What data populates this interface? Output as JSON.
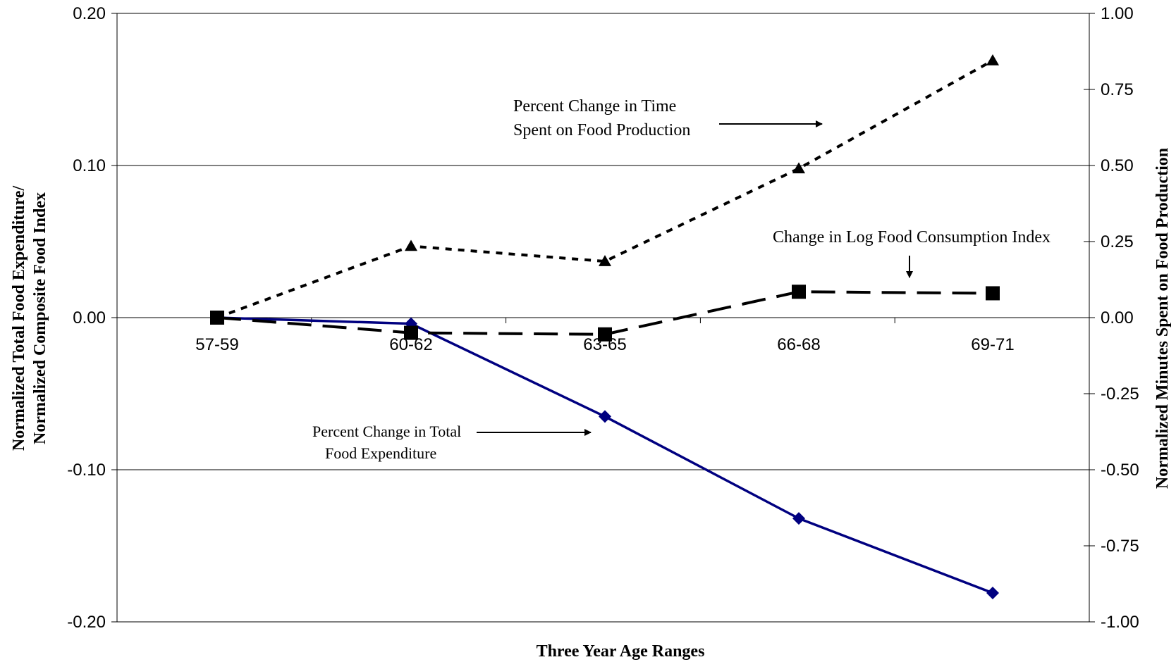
{
  "chart_data": {
    "type": "line",
    "categories": [
      "57-59",
      "60-62",
      "63-65",
      "66-68",
      "69-71"
    ],
    "xlabel": "Three Year Age Ranges",
    "ylabel_left": [
      "Normalized Total Food Expenditure/",
      "Normalized Composite Food Index"
    ],
    "ylabel_right": "Normalized Minutes Spent on Food Production",
    "ylim_left": [
      -0.2,
      0.2
    ],
    "ylim_right": [
      -1.0,
      1.0
    ],
    "left_ticks": [
      "0.20",
      "0.10",
      "0.00",
      "-0.10",
      "-0.20"
    ],
    "right_ticks": [
      "1.00",
      "0.75",
      "0.50",
      "0.25",
      "0.00",
      "-0.25",
      "-0.50",
      "-0.75",
      "-1.00"
    ],
    "grid": "horizontal at left-axis ticks",
    "series": [
      {
        "name": "Percent Change in Total Food Expenditure",
        "axis": "left",
        "values": [
          0.0,
          -0.004,
          -0.065,
          -0.132,
          -0.181
        ],
        "color": "#000080",
        "style": "solid",
        "marker": "diamond"
      },
      {
        "name": "Change in Log Food Consumption Index",
        "axis": "left",
        "values": [
          0.0,
          -0.01,
          -0.011,
          0.017,
          0.016
        ],
        "color": "#000000",
        "style": "long-dash",
        "marker": "square"
      },
      {
        "name": "Percent Change in Time Spent on Food Production",
        "axis": "right",
        "values": [
          0.0,
          0.235,
          0.185,
          0.49,
          0.845
        ],
        "color": "#000000",
        "style": "dotted",
        "marker": "triangle"
      }
    ],
    "annotations": [
      {
        "lines": [
          "Percent Change in Time",
          "Spent on Food Production"
        ],
        "points_to": "Percent Change in Time Spent on Food Production"
      },
      {
        "lines": [
          "Change in Log Food Consumption Index"
        ],
        "points_to": "Change in Log Food Consumption Index"
      },
      {
        "lines": [
          "Percent Change in Total",
          "Food Expenditure"
        ],
        "points_to": "Percent Change in Total Food Expenditure"
      }
    ]
  }
}
